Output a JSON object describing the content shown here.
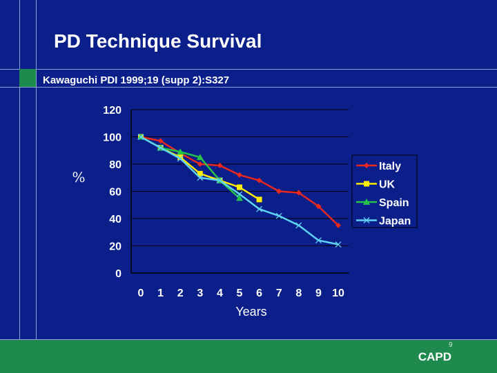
{
  "slide": {
    "title": "PD Technique Survival",
    "citation": "Kawaguchi PDI 1999;19 (supp 2):S327",
    "footer": "CAPD",
    "page_number": "9"
  },
  "colors": {
    "background": "#0b1f8a",
    "footer_band": "#1e8a4e",
    "text": "#ffffff"
  },
  "chart_data": {
    "type": "line",
    "title": "",
    "xlabel": "Years",
    "ylabel": "%",
    "x": [
      0,
      1,
      2,
      3,
      4,
      5,
      6,
      7,
      8,
      9,
      10
    ],
    "x_ticks": [
      "0",
      "1",
      "2",
      "3",
      "4",
      "5",
      "6",
      "7",
      "8",
      "9",
      "10"
    ],
    "y_ticks": [
      "0",
      "20",
      "40",
      "60",
      "80",
      "100",
      "120"
    ],
    "ylim": [
      0,
      120
    ],
    "grid": "horizontal",
    "legend_position": "right",
    "series": [
      {
        "name": "Italy",
        "color": "#e8281e",
        "marker": "diamond",
        "x": [
          0,
          1,
          2,
          3,
          4,
          5,
          6,
          7,
          8,
          9,
          10
        ],
        "values": [
          100,
          97,
          88,
          80,
          79,
          72,
          68,
          60,
          59,
          49,
          35
        ]
      },
      {
        "name": "UK",
        "color": "#ffee00",
        "marker": "square",
        "x": [
          0,
          1,
          2,
          3,
          4,
          5,
          6
        ],
        "values": [
          100,
          92,
          85,
          73,
          68,
          63,
          54
        ]
      },
      {
        "name": "Spain",
        "color": "#27c24a",
        "marker": "triangle",
        "x": [
          0,
          1,
          2,
          3,
          4,
          5
        ],
        "values": [
          100,
          92,
          89,
          85,
          68,
          55
        ]
      },
      {
        "name": "Japan",
        "color": "#5ed4f2",
        "marker": "x",
        "x": [
          0,
          1,
          2,
          3,
          4,
          5,
          6,
          7,
          8,
          9,
          10
        ],
        "values": [
          100,
          92,
          84,
          70,
          68,
          58,
          47,
          42,
          35,
          24,
          21
        ]
      }
    ]
  }
}
